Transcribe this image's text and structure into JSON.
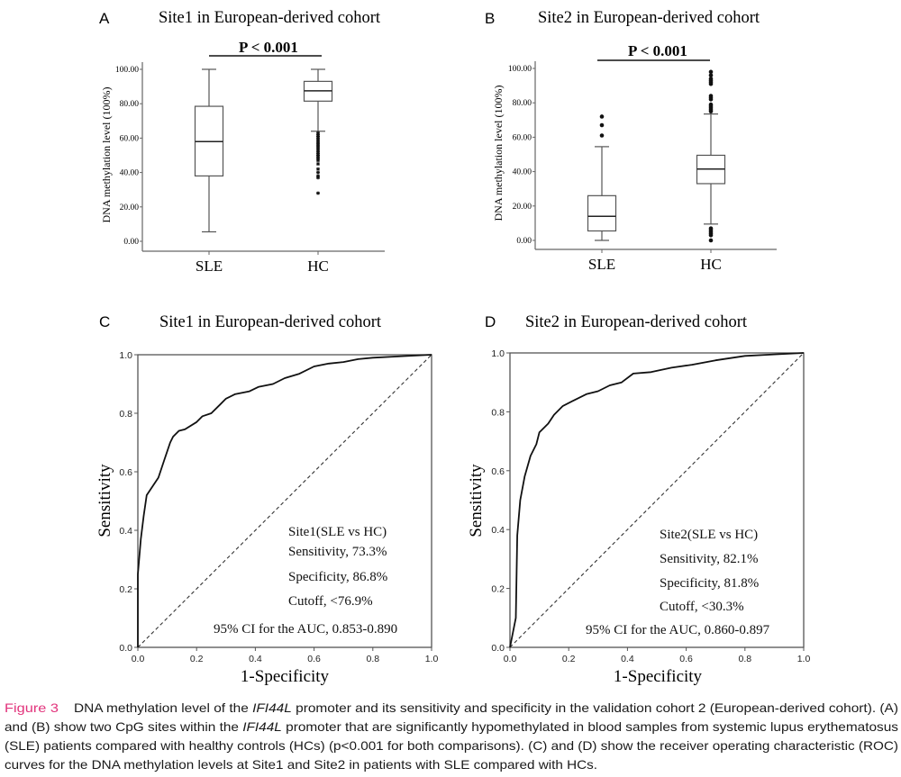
{
  "colors": {
    "caption_label": "#e2347c",
    "ink": "#111111",
    "axis": "#555555"
  },
  "chart_data": [
    {
      "panel": "A",
      "type": "boxplot",
      "title": "Site1 in European-derived cohort",
      "significance": "P < 0.001",
      "ylabel": "DNA methylation level (100%)",
      "xlabel": "",
      "ylim": [
        0,
        100
      ],
      "yticks": [
        "0.00",
        "20.00",
        "40.00",
        "60.00",
        "80.00",
        "100.00"
      ],
      "categories": [
        "SLE",
        "HC"
      ],
      "boxes": [
        {
          "name": "SLE",
          "whisker_low": 5.5,
          "q1": 38,
          "median": 58,
          "q3": 78.5,
          "whisker_high": 100,
          "outliers": [],
          "outlier_marker": "dot"
        },
        {
          "name": "HC",
          "whisker_low": 64,
          "q1": 81.5,
          "median": 87.5,
          "q3": 93,
          "whisker_high": 100,
          "outliers": [
            28,
            37,
            38,
            40,
            42,
            45,
            47,
            48,
            49,
            50,
            51,
            52,
            53,
            54,
            55,
            56,
            57,
            58,
            59,
            60,
            61,
            62,
            63
          ],
          "outlier_marker": "star"
        }
      ]
    },
    {
      "panel": "B",
      "type": "boxplot",
      "title": "Site2 in European-derived cohort",
      "significance": "P < 0.001",
      "ylabel": "DNA methylation level (100%)",
      "xlabel": "",
      "ylim": [
        0,
        100
      ],
      "yticks": [
        "0.00",
        "20.00",
        "40.00",
        "60.00",
        "80.00",
        "100.00"
      ],
      "categories": [
        "SLE",
        "HC"
      ],
      "boxes": [
        {
          "name": "SLE",
          "whisker_low": 0,
          "q1": 5.5,
          "median": 14,
          "q3": 26,
          "whisker_high": 54.5,
          "outliers": [
            61,
            67,
            72
          ],
          "outlier_marker": "dot"
        },
        {
          "name": "HC",
          "whisker_low": 9.5,
          "q1": 33,
          "median": 41.5,
          "q3": 49.5,
          "whisker_high": 73.5,
          "outliers": [
            0,
            3,
            4,
            5,
            6,
            7,
            75,
            76,
            77,
            78,
            79,
            82,
            83,
            84,
            91,
            92,
            93,
            94,
            96,
            98
          ],
          "outlier_marker": "dot"
        }
      ]
    },
    {
      "panel": "C",
      "type": "line",
      "title": "Site1 in European-derived cohort",
      "xlabel": "1-Specificity",
      "ylabel": "Sensitivity",
      "xlim": [
        0,
        1
      ],
      "ylim": [
        0,
        1
      ],
      "xticks": [
        "0.0",
        "0.2",
        "0.4",
        "0.6",
        "0.8",
        "1.0"
      ],
      "yticks": [
        "0.0",
        "0.2",
        "0.4",
        "0.6",
        "0.8",
        "1.0"
      ],
      "reference_line": "diagonal dashed",
      "series": [
        {
          "name": "ROC",
          "x": [
            0,
            0,
            0.01,
            0.02,
            0.03,
            0.05,
            0.07,
            0.09,
            0.11,
            0.12,
            0.14,
            0.16,
            0.2,
            0.22,
            0.25,
            0.28,
            0.3,
            0.33,
            0.38,
            0.41,
            0.46,
            0.5,
            0.55,
            0.6,
            0.65,
            0.7,
            0.75,
            0.8,
            0.9,
            1
          ],
          "y": [
            0,
            0.25,
            0.37,
            0.45,
            0.52,
            0.55,
            0.58,
            0.64,
            0.7,
            0.72,
            0.74,
            0.745,
            0.77,
            0.79,
            0.8,
            0.83,
            0.85,
            0.865,
            0.875,
            0.89,
            0.9,
            0.92,
            0.935,
            0.96,
            0.97,
            0.975,
            0.985,
            0.99,
            0.995,
            1
          ]
        }
      ],
      "annotations": [
        "Site1(SLE vs HC)",
        "Sensitivity, 73.3%",
        "Specificity, 86.8%",
        "Cutoff, <76.9%",
        "95% CI for the AUC, 0.853-0.890"
      ]
    },
    {
      "panel": "D",
      "type": "line",
      "title": "Site2 in European-derived cohort",
      "xlabel": "1-Specificity",
      "ylabel": "Sensitivity",
      "xlim": [
        0,
        1
      ],
      "ylim": [
        0,
        1
      ],
      "xticks": [
        "0.0",
        "0.2",
        "0.4",
        "0.6",
        "0.8",
        "1.0"
      ],
      "yticks": [
        "0.0",
        "0.2",
        "0.4",
        "0.6",
        "0.8",
        "1.0"
      ],
      "reference_line": "diagonal dashed",
      "series": [
        {
          "name": "ROC",
          "x": [
            0,
            0.02,
            0.025,
            0.035,
            0.05,
            0.07,
            0.09,
            0.1,
            0.13,
            0.15,
            0.18,
            0.22,
            0.26,
            0.3,
            0.34,
            0.38,
            0.42,
            0.48,
            0.55,
            0.62,
            0.7,
            0.8,
            0.9,
            1
          ],
          "y": [
            0,
            0.1,
            0.38,
            0.5,
            0.58,
            0.65,
            0.69,
            0.73,
            0.76,
            0.79,
            0.82,
            0.84,
            0.86,
            0.87,
            0.89,
            0.9,
            0.93,
            0.935,
            0.95,
            0.96,
            0.975,
            0.99,
            0.995,
            1
          ]
        }
      ],
      "annotations": [
        "Site2(SLE vs HC)",
        "Sensitivity, 82.1%",
        "Specificity, 81.8%",
        "Cutoff, <30.3%",
        "95% CI for the AUC, 0.860-0.897"
      ]
    }
  ],
  "caption": {
    "label": "Figure 3",
    "lines": [
      [
        {
          "t": "DNA methylation level of the "
        },
        {
          "t": "IFI44L",
          "i": true
        },
        {
          "t": " promoter and its sensitivity and specificity in the validation cohort 2 (European-derived cohort). (A)"
        }
      ],
      [
        {
          "t": "and (B) show two CpG sites within the "
        },
        {
          "t": "IFI44L",
          "i": true
        },
        {
          "t": " promoter that are significantly hypomethylated in blood samples from systemic lupus erythematosus"
        }
      ],
      [
        {
          "t": "(SLE) patients compared with healthy controls (HCs) (p<0.001 for both comparisons). (C) and (D) show the receiver operating characteristic (ROC)"
        }
      ],
      [
        {
          "t": "curves for the DNA methylation levels at Site1 and Site2 in patients with SLE compared with HCs."
        }
      ]
    ]
  }
}
